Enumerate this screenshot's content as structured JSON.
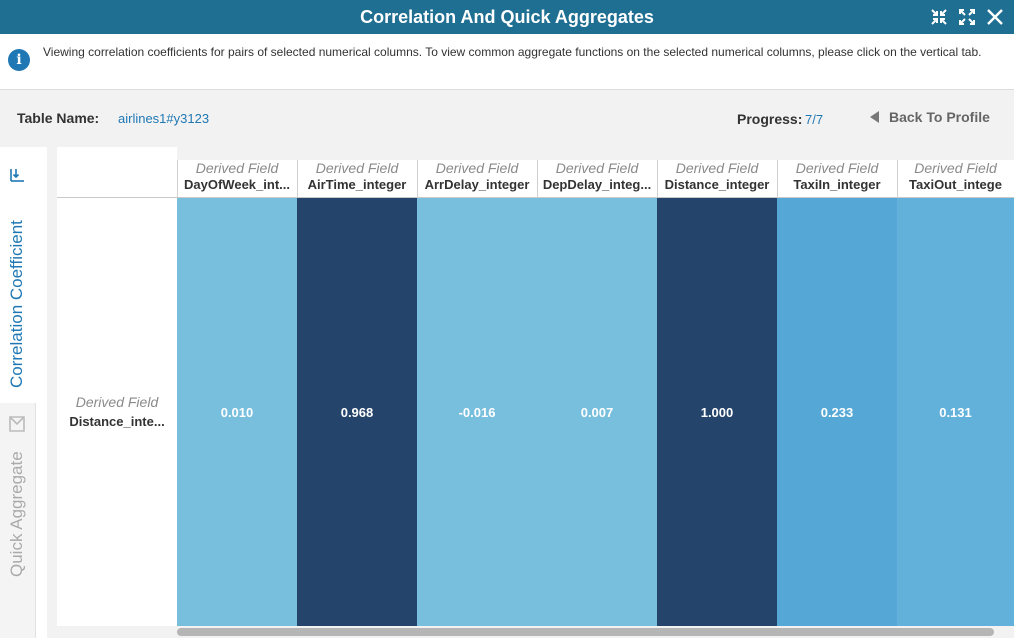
{
  "window": {
    "title": "Correlation And Quick Aggregates"
  },
  "info": {
    "text": "Viewing correlation coefficients for pairs of selected numerical columns. To view common aggregate functions on the selected numerical columns, please click on the vertical tab."
  },
  "table": {
    "label": "Table Name:",
    "name": "airlines1#y3123",
    "progress_label": "Progress:",
    "progress_value": "7/7",
    "back_label": "Back To Profile"
  },
  "side_tabs": {
    "correlation": "Correlation Coefficient",
    "aggregate": "Quick Aggregate"
  },
  "grid": {
    "row": {
      "type_label": "Derived Field",
      "name": "Distance_inte..."
    },
    "columns": [
      {
        "type_label": "Derived Field",
        "name": "DayOfWeek_int...",
        "value": "0.010",
        "color": "#78bfde"
      },
      {
        "type_label": "Derived Field",
        "name": "AirTime_integer",
        "value": "0.968",
        "color": "#25446b"
      },
      {
        "type_label": "Derived Field",
        "name": "ArrDelay_integer",
        "value": "-0.016",
        "color": "#78bfde"
      },
      {
        "type_label": "Derived Field",
        "name": "DepDelay_integ...",
        "value": "0.007",
        "color": "#78bfde"
      },
      {
        "type_label": "Derived Field",
        "name": "Distance_integer",
        "value": "1.000",
        "color": "#25446b"
      },
      {
        "type_label": "Derived Field",
        "name": "TaxiIn_integer",
        "value": "0.233",
        "color": "#55a7d5"
      },
      {
        "type_label": "Derived Field",
        "name": "TaxiOut_intege",
        "value": "0.131",
        "color": "#62b1da"
      }
    ]
  },
  "colors": {
    "title_bar": "#1f6f93",
    "accent": "#1f78b4"
  }
}
